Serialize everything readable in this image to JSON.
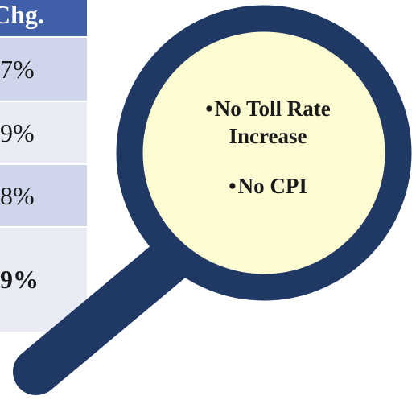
{
  "table": {
    "header": "Chg.",
    "rows": [
      "7%",
      "9%",
      "8%",
      "9%"
    ]
  },
  "callout": {
    "items": [
      "No Toll Rate Increase",
      "No CPI"
    ]
  }
}
